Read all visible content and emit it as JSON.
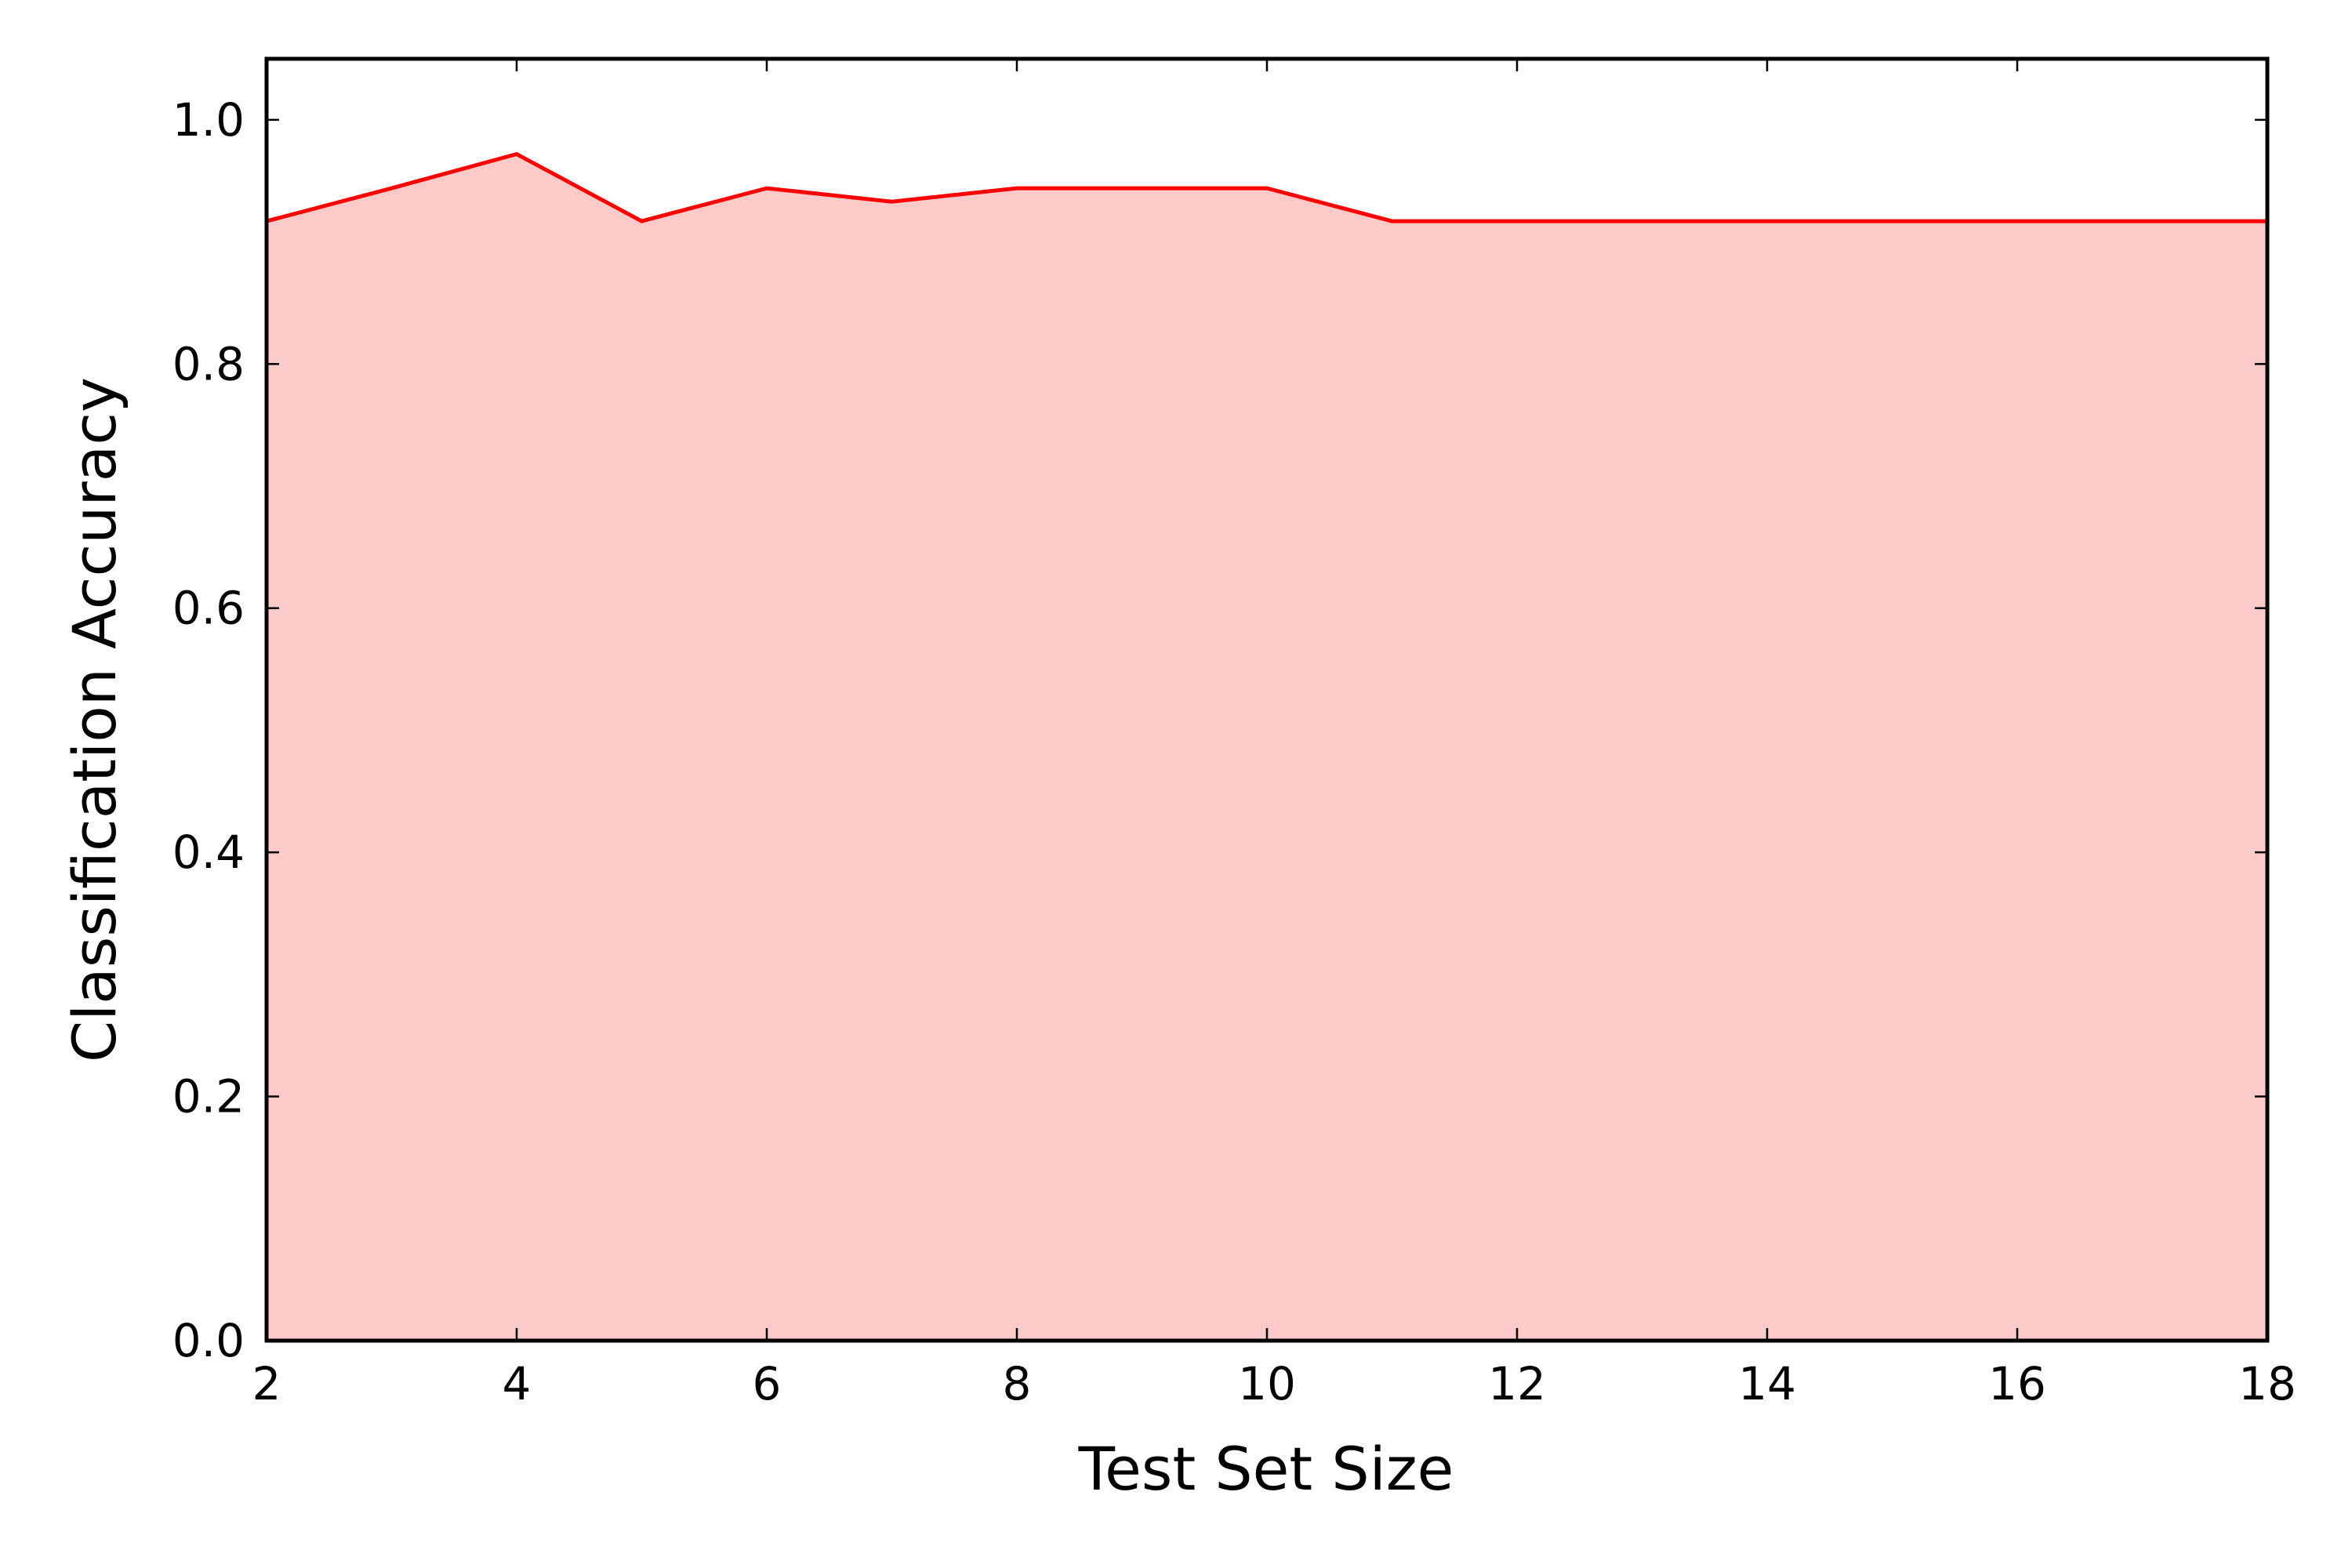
{
  "chart_data": {
    "type": "area",
    "title": "",
    "xlabel": "Test Set Size",
    "ylabel": "Classification Accuracy",
    "xlim": [
      2,
      18
    ],
    "ylim": [
      0.0,
      1.05
    ],
    "xticks": [
      2,
      4,
      6,
      8,
      10,
      12,
      14,
      16,
      18
    ],
    "yticks": [
      0.0,
      0.2,
      0.4,
      0.6,
      0.8,
      1.0
    ],
    "xtick_labels": [
      "2",
      "4",
      "6",
      "8",
      "10",
      "12",
      "14",
      "16",
      "18"
    ],
    "ytick_labels": [
      "0.0",
      "0.2",
      "0.4",
      "0.6",
      "0.8",
      "1.0"
    ],
    "grid": false,
    "series": [
      {
        "x": [
          2,
          3,
          4,
          5,
          6,
          7,
          8,
          9,
          10,
          11,
          12,
          13,
          14,
          15,
          16,
          17,
          18
        ],
        "y": [
          0.917,
          0.944,
          0.972,
          0.917,
          0.944,
          0.933,
          0.944,
          0.944,
          0.944,
          0.917,
          0.917,
          0.917,
          0.917,
          0.917,
          0.917,
          0.917,
          0.917
        ],
        "line_color": "#ff0000",
        "fill_color": "#fdcaca"
      }
    ]
  }
}
